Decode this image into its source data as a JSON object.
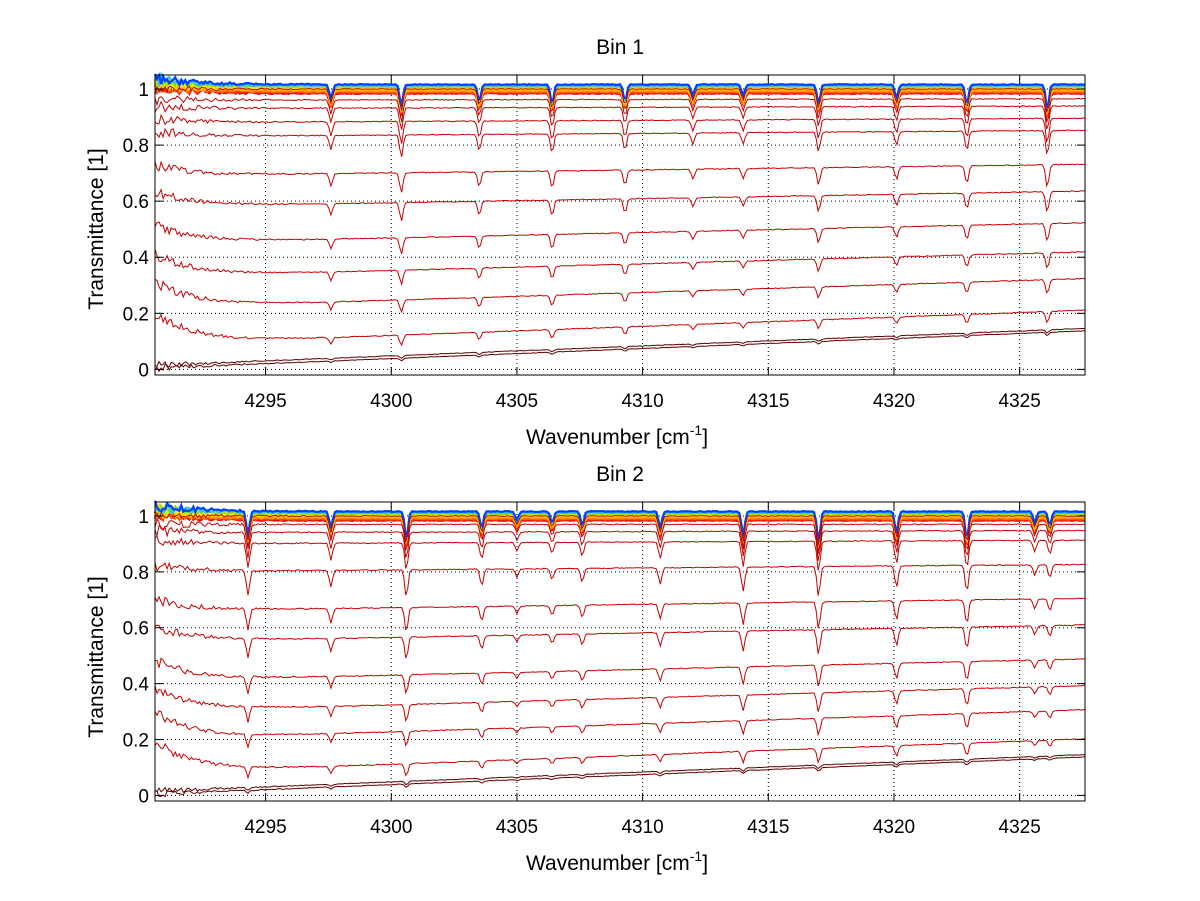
{
  "chart_data": [
    {
      "type": "line",
      "title": "Bin 1",
      "xlabel": "Wavenumber [cm",
      "xlabel_sup": "-1",
      "xlabel_end": "]",
      "ylabel": "Transmittance [1]",
      "xlim": [
        4290.6,
        4327.6
      ],
      "ylim": [
        -0.02,
        1.05
      ],
      "xticks": [
        4295,
        4300,
        4305,
        4310,
        4315,
        4320,
        4325
      ],
      "yticks": [
        0,
        0.2,
        0.4,
        0.6,
        0.8,
        1
      ],
      "ytick_labels": [
        "0",
        "0.2",
        "0.4",
        "0.6",
        "0.8",
        "1"
      ],
      "grid": true,
      "series_color": "#c80000",
      "top_colors": [
        "#ff0000",
        "#ff4000",
        "#ff8000",
        "#ffb000",
        "#ffd800",
        "#f0f000",
        "#a0e000",
        "#30c0ff",
        "#0040ff"
      ],
      "baselines": [
        1.0,
        0.96,
        0.93,
        0.88,
        0.83,
        0.69,
        0.58,
        0.45,
        0.33,
        0.22,
        0.09,
        0.015,
        0.005
      ],
      "lines": [
        4297.6,
        4300.4,
        4303.5,
        4306.4,
        4309.3,
        4312.0,
        4314.0,
        4317.0,
        4320.1,
        4322.9,
        4326.1
      ],
      "line_depths": [
        0.05,
        0.08,
        0.06,
        0.07,
        0.06,
        0.04,
        0.04,
        0.07,
        0.05,
        0.07,
        0.09
      ]
    },
    {
      "type": "line",
      "title": "Bin 2",
      "xlabel": "Wavenumber [cm",
      "xlabel_sup": "-1",
      "xlabel_end": "]",
      "ylabel": "Transmittance [1]",
      "xlim": [
        4290.6,
        4327.6
      ],
      "ylim": [
        -0.02,
        1.05
      ],
      "xticks": [
        4295,
        4300,
        4305,
        4310,
        4315,
        4320,
        4325
      ],
      "yticks": [
        0,
        0.2,
        0.4,
        0.6,
        0.8,
        1
      ],
      "ytick_labels": [
        "0",
        "0.2",
        "0.4",
        "0.6",
        "0.8",
        "1"
      ],
      "grid": true,
      "series_color": "#c80000",
      "top_colors": [
        "#ff0000",
        "#ff4000",
        "#ff8000",
        "#ffb000",
        "#ffd800",
        "#f0f000",
        "#a0e000",
        "#30c0ff",
        "#0040ff"
      ],
      "baselines": [
        1.0,
        0.97,
        0.94,
        0.9,
        0.8,
        0.66,
        0.55,
        0.41,
        0.3,
        0.2,
        0.08,
        0.015,
        0.005
      ],
      "lines": [
        4294.3,
        4297.6,
        4300.6,
        4303.6,
        4305.0,
        4306.4,
        4307.6,
        4310.7,
        4314.0,
        4317.0,
        4320.1,
        4322.9,
        4325.6,
        4326.2
      ],
      "line_depths": [
        0.09,
        0.06,
        0.1,
        0.06,
        0.03,
        0.04,
        0.05,
        0.06,
        0.09,
        0.11,
        0.08,
        0.1,
        0.04,
        0.05
      ]
    }
  ]
}
